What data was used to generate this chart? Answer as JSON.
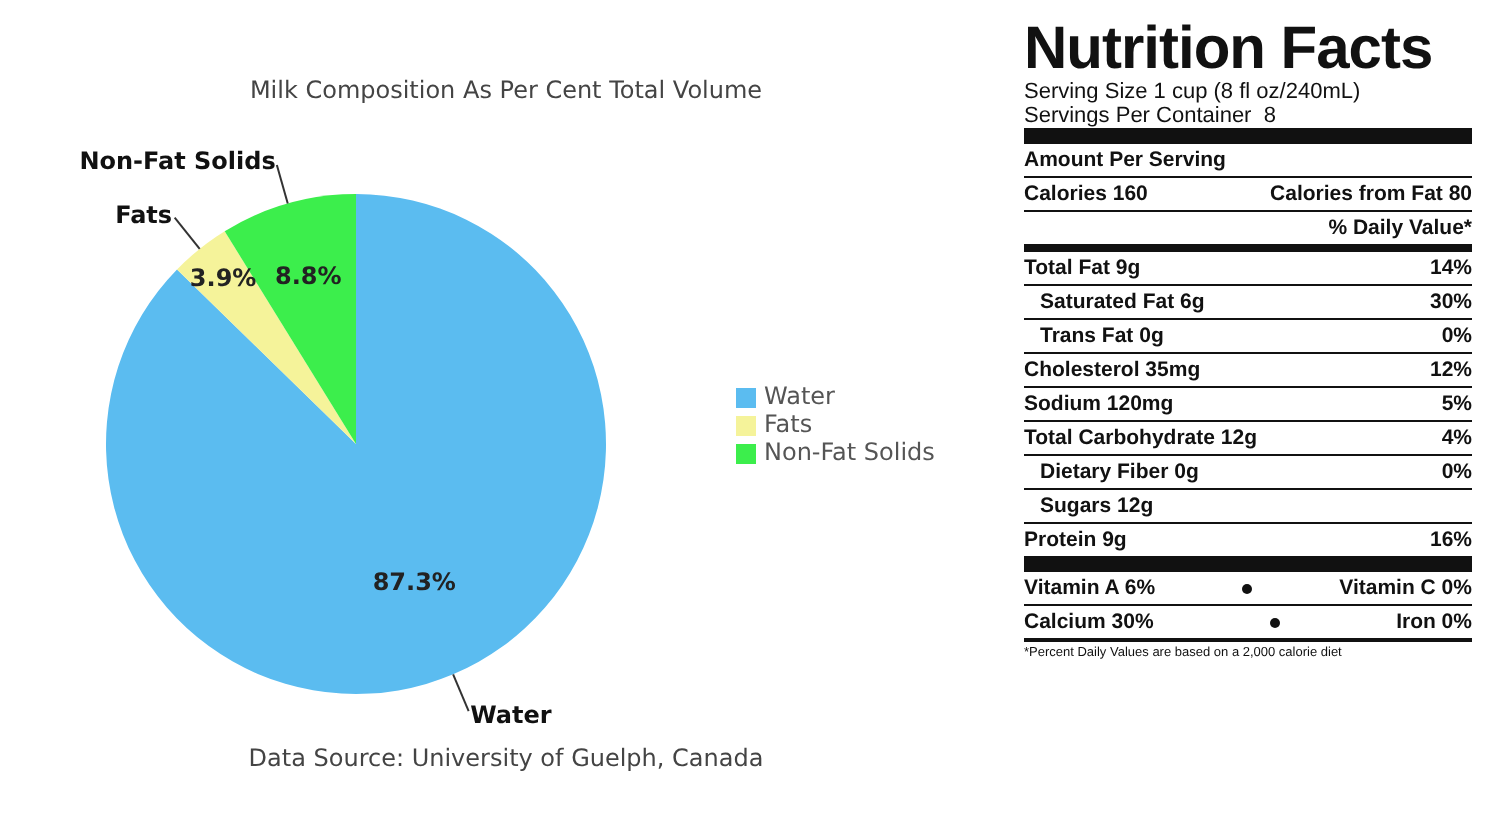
{
  "chart_data": [
    {
      "type": "pie",
      "title": "Milk Composition As Per Cent Total Volume",
      "categories": [
        "Water",
        "Fats",
        "Non-Fat Solids"
      ],
      "values": [
        87.3,
        3.9,
        8.8
      ],
      "value_labels": [
        "87.3%",
        "3.9%",
        "8.8%"
      ],
      "colors": [
        "#5bbcf0",
        "#f5f39a",
        "#3cee4c"
      ],
      "legend": "right",
      "annotations": [
        "Data Source: University of Guelph, Canada"
      ]
    },
    {
      "type": "other",
      "title": "Nutrition Facts",
      "annotations": [
        "Serving Size 1 cup (8 fl oz/240mL)",
        "Servings Per Container  8",
        "Amount Per Serving",
        "Calories 160",
        "Calories from Fat 80",
        "% Daily Value*",
        "Total Fat 9g",
        "14%",
        "Saturated Fat 6g",
        "30%",
        "Trans Fat 0g",
        "0%",
        "Cholesterol 35mg",
        "12%",
        "Sodium 120mg",
        "5%",
        "Total Carbohydrate 12g",
        "4%",
        "Dietary Fiber 0g",
        "0%",
        "Sugars 12g",
        "Protein 9g",
        "16%",
        "Vitamin A 6%",
        "Vitamin C 0%",
        "Calcium 30%",
        "Iron 0%",
        "*Percent Daily Values are based on a 2,000 calorie diet"
      ]
    }
  ]
}
